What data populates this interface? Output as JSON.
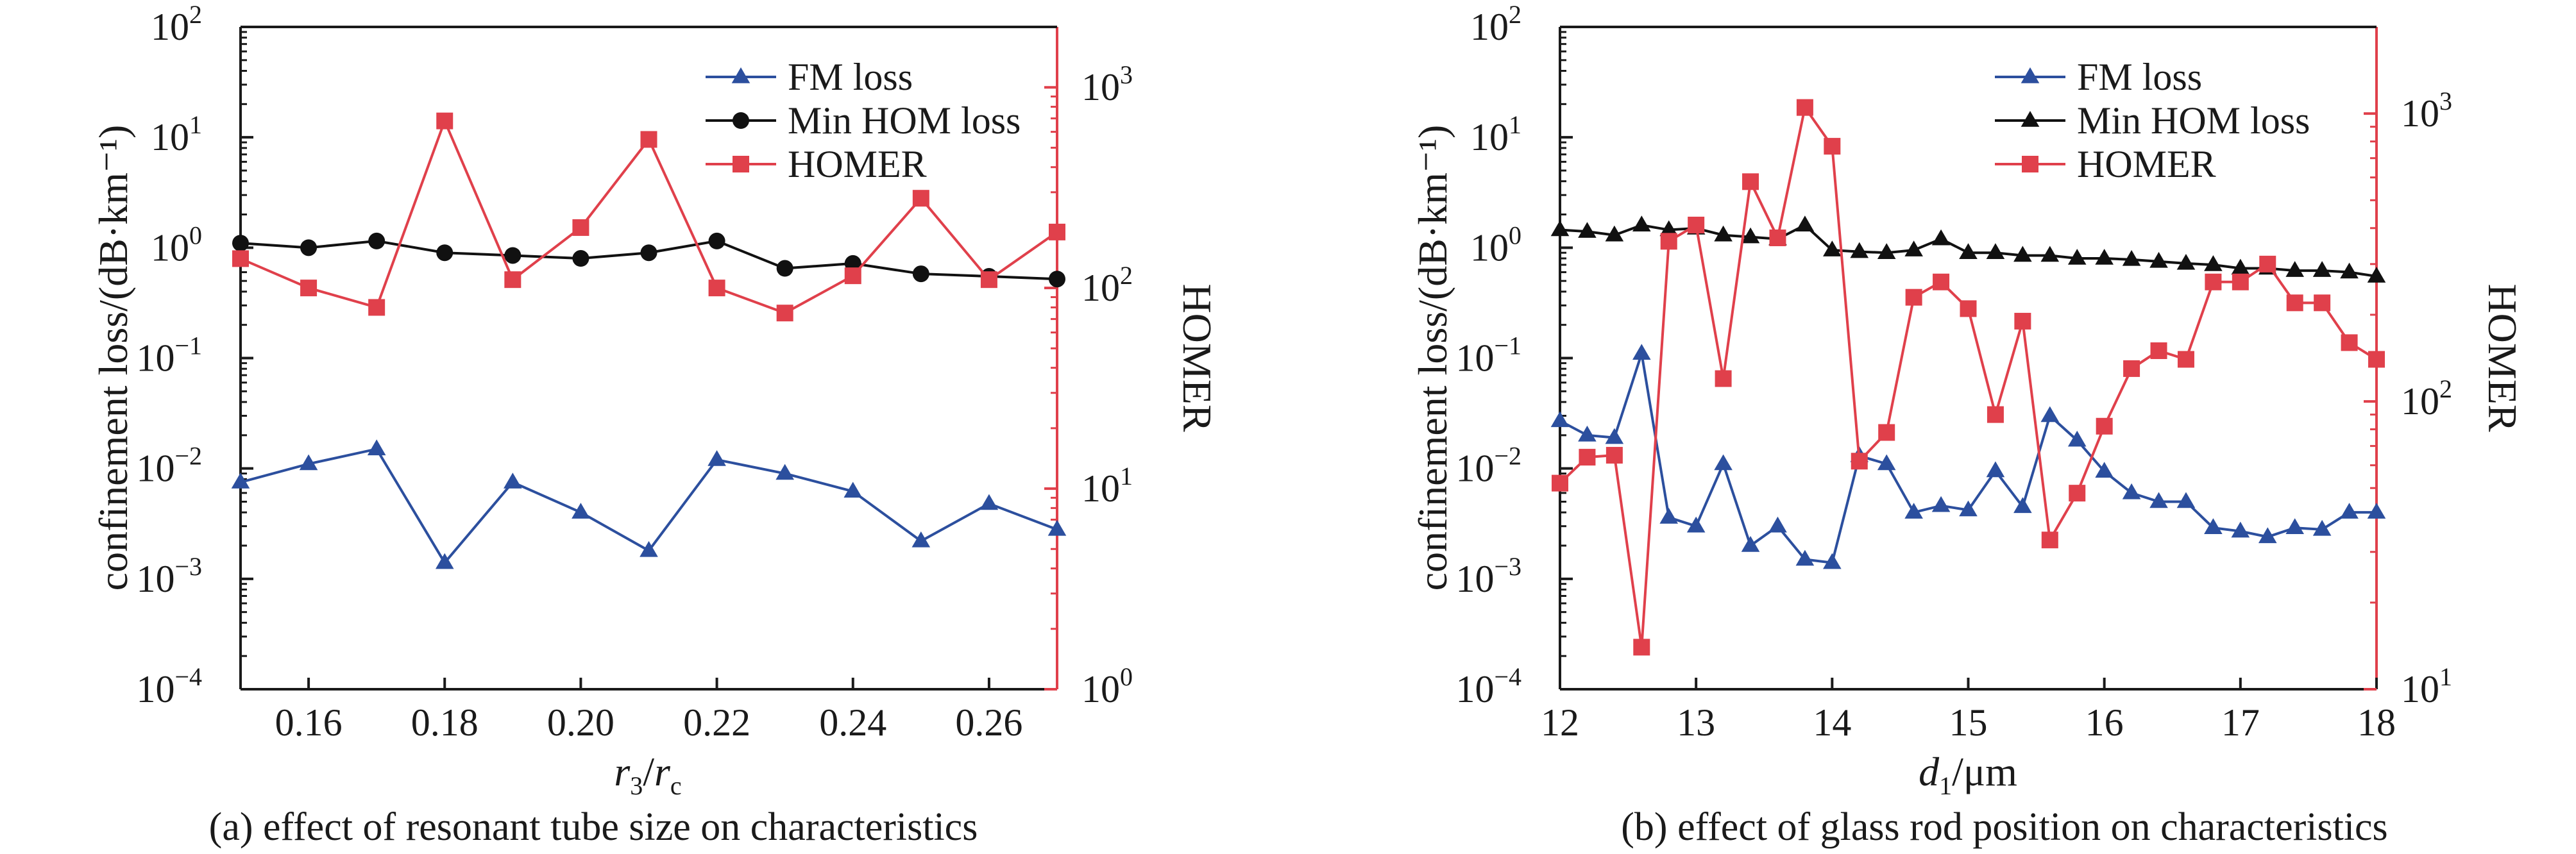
{
  "colors": {
    "fm": "#2c4f9e",
    "hom": "#111111",
    "homer": "#e0404b",
    "axis": "#1a1a1a"
  },
  "chart_data": [
    {
      "panel": "a",
      "type": "line",
      "caption": "(a) effect of resonant tube size on characteristics",
      "xlabel_main": "r",
      "xlabel_sub": "3",
      "xlabel_sep": "/",
      "xlabel_main2": "r",
      "xlabel_sub2": "c",
      "ylabel": "confinement loss/(dB·km⁻¹)",
      "y2label": "HOMER",
      "xlim": [
        0.15,
        0.27
      ],
      "ylim": [
        0.0001,
        100
      ],
      "y2lim": [
        1,
        2000
      ],
      "yscale": "log",
      "y2scale": "log",
      "grid": false,
      "legend_position": "top-right",
      "x_ticks": [
        "0.16",
        "0.18",
        "0.20",
        "0.22",
        "0.24",
        "0.26"
      ],
      "x_tick_values": [
        0.16,
        0.18,
        0.2,
        0.22,
        0.24,
        0.26
      ],
      "y_ticks": [
        {
          "base": "10",
          "exp": "−4",
          "value": 0.0001
        },
        {
          "base": "10",
          "exp": "−3",
          "value": 0.001
        },
        {
          "base": "10",
          "exp": "−2",
          "value": 0.01
        },
        {
          "base": "10",
          "exp": "−1",
          "value": 0.1
        },
        {
          "base": "10",
          "exp": "0",
          "value": 1
        },
        {
          "base": "10",
          "exp": "1",
          "value": 10
        },
        {
          "base": "10",
          "exp": "2",
          "value": 100
        }
      ],
      "y2_ticks": [
        {
          "base": "10",
          "exp": "0",
          "value": 1
        },
        {
          "base": "10",
          "exp": "1",
          "value": 10
        },
        {
          "base": "10",
          "exp": "2",
          "value": 100
        },
        {
          "base": "10",
          "exp": "3",
          "value": 1000
        }
      ],
      "x": [
        0.15,
        0.16,
        0.17,
        0.18,
        0.19,
        0.2,
        0.21,
        0.22,
        0.23,
        0.24,
        0.25,
        0.26,
        0.27
      ],
      "series": [
        {
          "name": "FM loss",
          "axis": "left",
          "marker": "triangle",
          "color_key": "fm",
          "values": [
            0.0075,
            0.011,
            0.015,
            0.0014,
            0.0075,
            0.004,
            0.0018,
            0.012,
            0.009,
            0.0062,
            0.0022,
            0.0048,
            0.0028
          ]
        },
        {
          "name": "Min HOM loss",
          "axis": "left",
          "marker": "circle",
          "color_key": "hom",
          "values": [
            1.1,
            1.0,
            1.15,
            0.9,
            0.85,
            0.8,
            0.9,
            1.15,
            0.65,
            0.72,
            0.58,
            0.55,
            0.52
          ]
        },
        {
          "name": "HOMER",
          "axis": "right",
          "marker": "square",
          "color_key": "homer",
          "values": [
            140,
            100,
            80,
            680,
            110,
            200,
            550,
            100,
            75,
            115,
            280,
            110,
            190
          ]
        }
      ]
    },
    {
      "panel": "b",
      "type": "line",
      "caption": "(b) effect of glass rod position on characteristics",
      "xlabel_main": "d",
      "xlabel_sub": "1",
      "xlabel_sep": "/μm",
      "xlabel_main2": "",
      "xlabel_sub2": "",
      "ylabel": "confinement loss/(dB·km⁻¹)",
      "y2label": "HOMER",
      "xlim": [
        12,
        18
      ],
      "ylim": [
        0.0001,
        100
      ],
      "y2lim": [
        10,
        2000
      ],
      "yscale": "log",
      "y2scale": "log",
      "grid": false,
      "legend_position": "top-right",
      "x_ticks": [
        "12",
        "13",
        "14",
        "15",
        "16",
        "17",
        "18"
      ],
      "x_tick_values": [
        12,
        13,
        14,
        15,
        16,
        17,
        18
      ],
      "y_ticks": [
        {
          "base": "10",
          "exp": "−4",
          "value": 0.0001
        },
        {
          "base": "10",
          "exp": "−3",
          "value": 0.001
        },
        {
          "base": "10",
          "exp": "−2",
          "value": 0.01
        },
        {
          "base": "10",
          "exp": "−1",
          "value": 0.1
        },
        {
          "base": "10",
          "exp": "0",
          "value": 1
        },
        {
          "base": "10",
          "exp": "1",
          "value": 10
        },
        {
          "base": "10",
          "exp": "2",
          "value": 100
        }
      ],
      "y2_ticks": [
        {
          "base": "10",
          "exp": "1",
          "value": 10
        },
        {
          "base": "10",
          "exp": "2",
          "value": 100
        },
        {
          "base": "10",
          "exp": "3",
          "value": 1000
        }
      ],
      "x": [
        12.0,
        12.2,
        12.4,
        12.6,
        12.8,
        13.0,
        13.2,
        13.4,
        13.6,
        13.8,
        14.0,
        14.2,
        14.4,
        14.6,
        14.8,
        15.0,
        15.2,
        15.4,
        15.6,
        15.8,
        16.0,
        16.2,
        16.4,
        16.6,
        16.8,
        17.0,
        17.2,
        17.4,
        17.6,
        17.8,
        18.0
      ],
      "series": [
        {
          "name": "FM loss",
          "axis": "left",
          "marker": "triangle",
          "color_key": "fm",
          "values": [
            0.027,
            0.02,
            0.019,
            0.11,
            0.0036,
            0.003,
            0.011,
            0.002,
            0.003,
            0.0015,
            0.0014,
            0.013,
            0.011,
            0.004,
            0.0046,
            0.0042,
            0.0095,
            0.0045,
            0.03,
            0.018,
            0.0094,
            0.006,
            0.005,
            0.005,
            0.0029,
            0.0027,
            0.0024,
            0.0029,
            0.0028,
            0.004,
            0.004
          ]
        },
        {
          "name": "Min HOM loss",
          "axis": "left",
          "marker": "triangle",
          "color_key": "hom",
          "values": [
            1.45,
            1.4,
            1.3,
            1.6,
            1.45,
            1.5,
            1.3,
            1.25,
            1.2,
            1.6,
            0.95,
            0.92,
            0.9,
            0.95,
            1.2,
            0.9,
            0.9,
            0.85,
            0.85,
            0.8,
            0.8,
            0.78,
            0.75,
            0.72,
            0.7,
            0.65,
            0.65,
            0.62,
            0.62,
            0.6,
            0.55
          ]
        },
        {
          "name": "HOMER",
          "axis": "right",
          "marker": "square",
          "color_key": "homer",
          "values": [
            52,
            64,
            65,
            14,
            360,
            410,
            120,
            580,
            370,
            1050,
            770,
            62,
            78,
            230,
            260,
            210,
            90,
            190,
            33,
            48,
            82,
            130,
            150,
            140,
            260,
            260,
            300,
            220,
            220,
            160,
            140
          ]
        }
      ]
    }
  ]
}
